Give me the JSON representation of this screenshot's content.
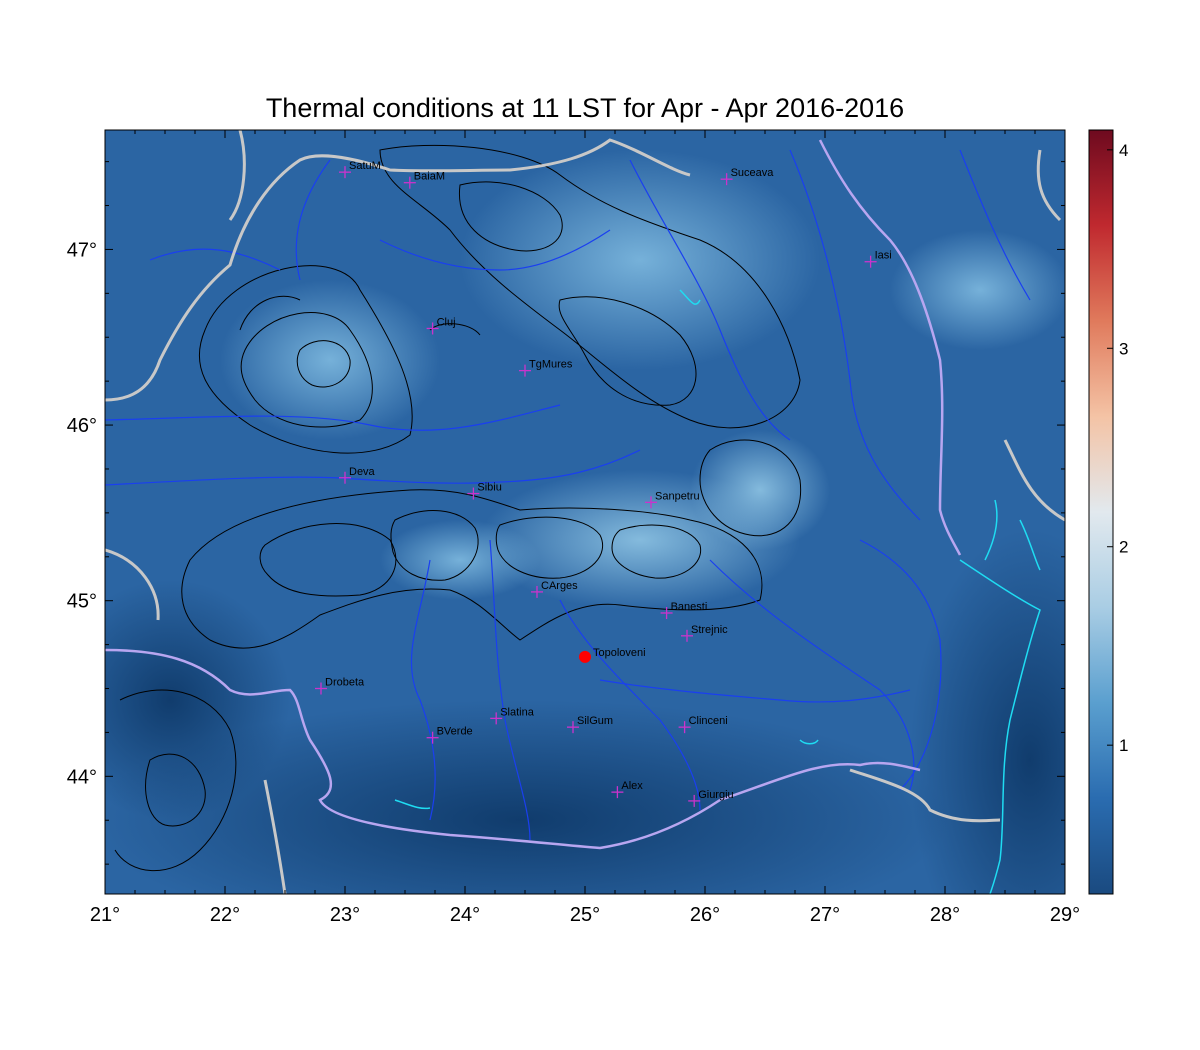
{
  "title": "Thermal conditions at 11 LST for Apr - Apr  2016-2016",
  "map": {
    "lon_range": [
      21,
      29
    ],
    "lat_range": [
      43.33,
      47.68
    ],
    "x_ticks": [
      {
        "value": 21,
        "label": "21°"
      },
      {
        "value": 22,
        "label": "22°"
      },
      {
        "value": 23,
        "label": "23°"
      },
      {
        "value": 24,
        "label": "24°"
      },
      {
        "value": 25,
        "label": "25°"
      },
      {
        "value": 26,
        "label": "26°"
      },
      {
        "value": 27,
        "label": "27°"
      },
      {
        "value": 28,
        "label": "28°"
      },
      {
        "value": 29,
        "label": "29°"
      }
    ],
    "y_ticks": [
      {
        "value": 44,
        "label": "44°"
      },
      {
        "value": 45,
        "label": "45°"
      },
      {
        "value": 46,
        "label": "46°"
      },
      {
        "value": 47,
        "label": "47°"
      }
    ],
    "colors": {
      "field_dark": "#124276",
      "field_mid": "#2b6aa8",
      "field_light": "#6aa7d3",
      "rivers": "#1a3ff0",
      "borders": "#c8c8c8",
      "danube": "#b8a6f0",
      "coast": "#1fdcf2",
      "contours": "#000000",
      "city_marker": "#cc33cc",
      "highlight": "#ff0000"
    },
    "cities": [
      {
        "name": "SatuM",
        "lon": 23.0,
        "lat": 47.44
      },
      {
        "name": "BaiaM",
        "lon": 23.54,
        "lat": 47.38
      },
      {
        "name": "Suceava",
        "lon": 26.18,
        "lat": 47.4
      },
      {
        "name": "Iasi",
        "lon": 27.38,
        "lat": 46.93
      },
      {
        "name": "Cluj",
        "lon": 23.73,
        "lat": 46.55
      },
      {
        "name": "TgMures",
        "lon": 24.5,
        "lat": 46.31
      },
      {
        "name": "Deva",
        "lon": 23.0,
        "lat": 45.7
      },
      {
        "name": "Sibiu",
        "lon": 24.07,
        "lat": 45.61
      },
      {
        "name": "Sanpetru",
        "lon": 25.55,
        "lat": 45.56
      },
      {
        "name": "CArges",
        "lon": 24.6,
        "lat": 45.05
      },
      {
        "name": "Banesti",
        "lon": 25.68,
        "lat": 44.93
      },
      {
        "name": "Strejnic",
        "lon": 25.85,
        "lat": 44.8
      },
      {
        "name": "Drobeta",
        "lon": 22.8,
        "lat": 44.5
      },
      {
        "name": "Slatina",
        "lon": 24.26,
        "lat": 44.33
      },
      {
        "name": "SilGum",
        "lon": 24.9,
        "lat": 44.28
      },
      {
        "name": "Clinceni",
        "lon": 25.83,
        "lat": 44.28
      },
      {
        "name": "BVerde",
        "lon": 23.73,
        "lat": 44.22
      },
      {
        "name": "Alex",
        "lon": 25.27,
        "lat": 43.91
      },
      {
        "name": "Giurgiu",
        "lon": 25.91,
        "lat": 43.86
      }
    ],
    "highlight_site": {
      "name": "Topoloveni",
      "lon": 25.0,
      "lat": 44.68
    }
  },
  "colorbar": {
    "range": [
      0.25,
      4.1
    ],
    "ticks": [
      {
        "value": 1,
        "label": "1"
      },
      {
        "value": 2,
        "label": "2"
      },
      {
        "value": 3,
        "label": "3"
      },
      {
        "value": 4,
        "label": "4"
      }
    ],
    "stops": [
      "#1a4a80",
      "#2a6cb0",
      "#5a9fcf",
      "#a9cde4",
      "#e2e9ee",
      "#f4c3a5",
      "#e07a5c",
      "#c0292f",
      "#6e0a1f"
    ]
  }
}
